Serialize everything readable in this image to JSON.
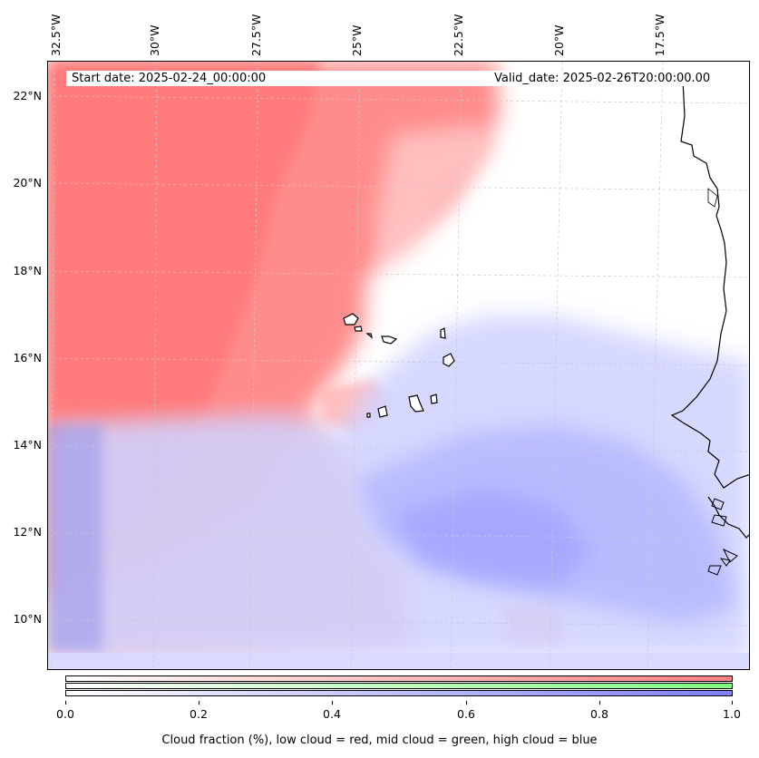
{
  "map": {
    "start_date": "Start date: 2025-02-24_00:00:00",
    "valid_date": "Valid_date: 2025-02-26T20:00:00.00",
    "lon_labels": [
      "32.5°W",
      "30°W",
      "27.5°W",
      "25°W",
      "22.5°W",
      "20°W",
      "17.5°W"
    ],
    "lat_labels": [
      "22°N",
      "20°N",
      "18°N",
      "16°N",
      "14°N",
      "12°N",
      "10°N"
    ],
    "layers": [
      {
        "name": "low cloud",
        "color": "#ff7f7f"
      },
      {
        "name": "mid cloud",
        "color": "#7fff7f"
      },
      {
        "name": "high cloud",
        "color": "#7f7fff"
      }
    ]
  },
  "colorbar": {
    "ticks": [
      "0.0",
      "0.2",
      "0.4",
      "0.6",
      "0.8",
      "1.0"
    ],
    "title": "Cloud fraction (%), low cloud = red, mid cloud = green, high cloud = blue",
    "colors": {
      "low": "#ff7f7f",
      "mid": "#7fff7f",
      "high": "#7f7fff"
    }
  }
}
